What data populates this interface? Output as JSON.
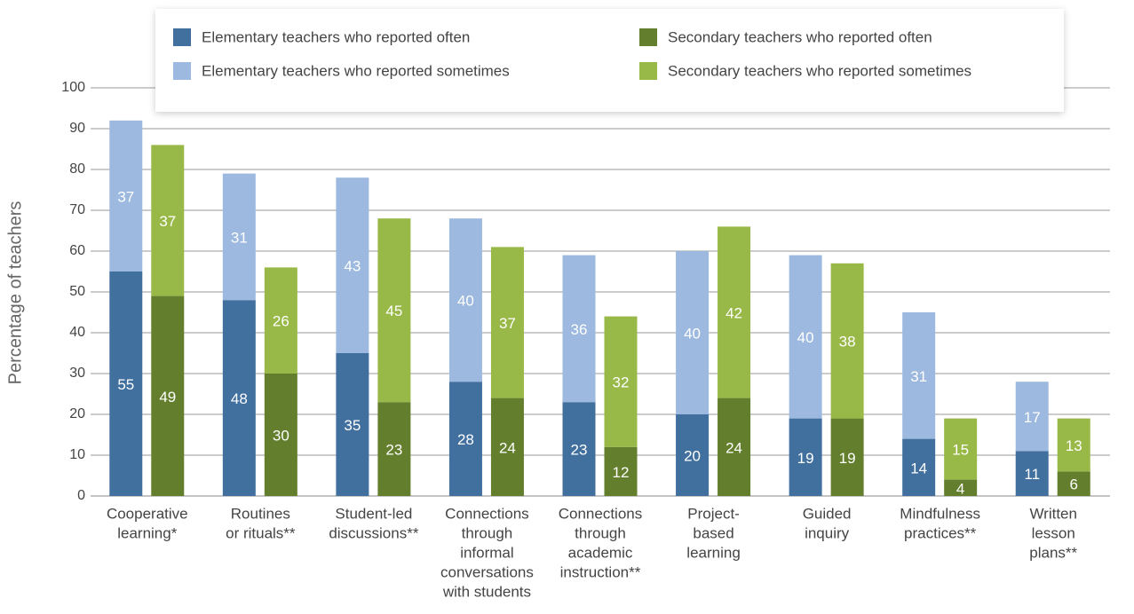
{
  "chart_data": {
    "type": "stacked_grouped_bar",
    "y_label": "Percentage of teachers",
    "categories": [
      [
        "Cooperative",
        "learning*"
      ],
      [
        "Routines",
        "or rituals**"
      ],
      [
        "Student-led",
        "discussions**"
      ],
      [
        "Connections",
        "through",
        "informal",
        "conversations",
        "with students"
      ],
      [
        "Connections",
        "through",
        "academic",
        "instruction**"
      ],
      [
        "Project-",
        "based",
        "learning"
      ],
      [
        "Guided",
        "inquiry"
      ],
      [
        "Mindfulness",
        "practices**"
      ],
      [
        "Written",
        "lesson",
        "plans**"
      ]
    ],
    "series": [
      {
        "name": "Elementary teachers who reported often",
        "color": "#41709f",
        "group": 0,
        "values": [
          55,
          48,
          35,
          28,
          23,
          20,
          19,
          14,
          11
        ]
      },
      {
        "name": "Elementary teachers who reported sometimes",
        "color": "#9db9df",
        "group": 0,
        "values": [
          37,
          31,
          43,
          40,
          36,
          40,
          40,
          31,
          17
        ]
      },
      {
        "name": "Secondary teachers who reported often",
        "color": "#637f2d",
        "group": 1,
        "values": [
          49,
          30,
          23,
          24,
          12,
          24,
          19,
          4,
          6
        ]
      },
      {
        "name": "Secondary teachers who reported sometimes",
        "color": "#98b847",
        "group": 1,
        "values": [
          37,
          26,
          45,
          37,
          32,
          42,
          38,
          15,
          13
        ]
      }
    ],
    "ylim": [
      0,
      100
    ],
    "yticks": [
      0,
      10,
      20,
      30,
      40,
      50,
      60,
      70,
      80,
      90,
      100
    ],
    "grid": true,
    "legend": "top"
  }
}
